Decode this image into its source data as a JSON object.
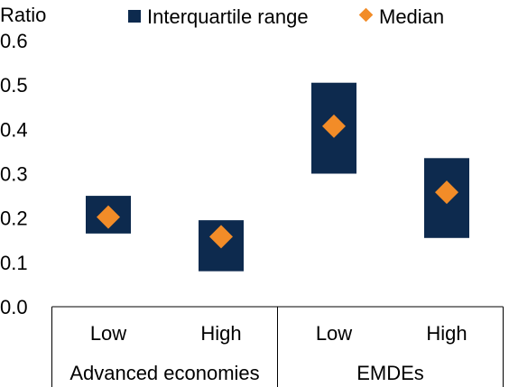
{
  "chart_data": {
    "type": "range-with-median",
    "ylabel": "Ratio",
    "ylim": [
      0,
      0.6
    ],
    "yticks": [
      "0.0",
      "0.1",
      "0.2",
      "0.3",
      "0.4",
      "0.5",
      "0.6"
    ],
    "categories": [
      "Low",
      "High",
      "Low",
      "High"
    ],
    "groups": [
      {
        "label": "Advanced economies",
        "categories": [
          "Low",
          "High"
        ]
      },
      {
        "label": "EMDEs",
        "categories": [
          "Low",
          "High"
        ]
      }
    ],
    "series": [
      {
        "name": "Interquartile range",
        "color": "#0d2a4e",
        "values": [
          [
            0.165,
            0.25
          ],
          [
            0.08,
            0.195
          ],
          [
            0.3,
            0.505
          ],
          [
            0.155,
            0.335
          ]
        ]
      },
      {
        "name": "Median",
        "color": "#f28c28",
        "values": [
          0.202,
          0.158,
          0.407,
          0.258
        ]
      }
    ],
    "legend_position": "top",
    "grid": false
  }
}
